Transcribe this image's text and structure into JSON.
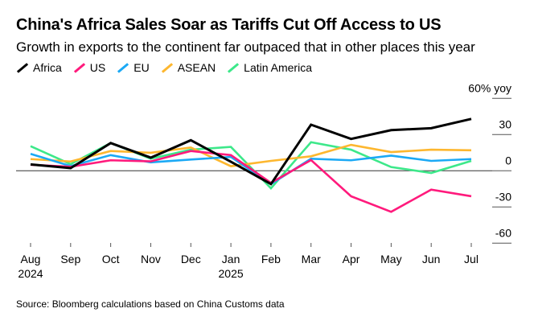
{
  "chart_data": {
    "type": "line",
    "title": "China's Africa Sales Soar as Tariffs Cut Off Access to US",
    "subtitle": "Growth in exports to the continent far outpaced that in other places this year",
    "categories": [
      "Aug\n2024",
      "Sep",
      "Oct",
      "Nov",
      "Dec",
      "Jan\n2025",
      "Feb",
      "Mar",
      "Apr",
      "May",
      "Jun",
      "Jul"
    ],
    "x_labels": [
      [
        "Aug",
        "2024"
      ],
      [
        "Sep"
      ],
      [
        "Oct"
      ],
      [
        "Nov"
      ],
      [
        "Dec"
      ],
      [
        "Jan",
        "2025"
      ],
      [
        "Feb"
      ],
      [
        "Mar"
      ],
      [
        "Apr"
      ],
      [
        "May"
      ],
      [
        "Jun"
      ],
      [
        "Jul"
      ]
    ],
    "ylim": [
      -60,
      60
    ],
    "yticks": [
      60,
      30,
      0,
      -30,
      -60
    ],
    "ytick_labels": [
      "60% yoy",
      "30",
      "0",
      "-30",
      "-60"
    ],
    "y_axis_side": "right",
    "grid": "short right-side tick lines, zero baseline",
    "legend_position": "top-left",
    "series": [
      {
        "name": "Africa",
        "color": "#000000",
        "values": [
          5.3,
          2.2,
          23,
          10.9,
          25.3,
          7.5,
          -11,
          38.2,
          26.4,
          33.7,
          35.3,
          43
        ]
      },
      {
        "name": "US",
        "color": "#ff1a7c",
        "values": [
          5,
          3.3,
          8.7,
          7.8,
          16.4,
          13,
          -10,
          8.9,
          -21.1,
          -34,
          -15.6,
          -21.1
        ]
      },
      {
        "name": "EU",
        "color": "#1ba9f5",
        "values": [
          14,
          3.9,
          13,
          7,
          9.3,
          11.5,
          -11,
          10,
          8.7,
          12.6,
          8.2,
          9.7
        ]
      },
      {
        "name": "ASEAN",
        "color": "#fdb72f",
        "values": [
          9.7,
          7.7,
          16.4,
          14.9,
          19.3,
          3.8,
          8.2,
          12,
          21.5,
          15.5,
          17.5,
          17
        ]
      },
      {
        "name": "Latin America",
        "color": "#3de88a",
        "values": [
          20.4,
          5.5,
          23,
          10,
          17.5,
          19.8,
          -14.5,
          23.7,
          17.5,
          3.1,
          -1.8,
          8.2
        ]
      }
    ],
    "source": "Source: Bloomberg calculations based on China Customs data"
  }
}
